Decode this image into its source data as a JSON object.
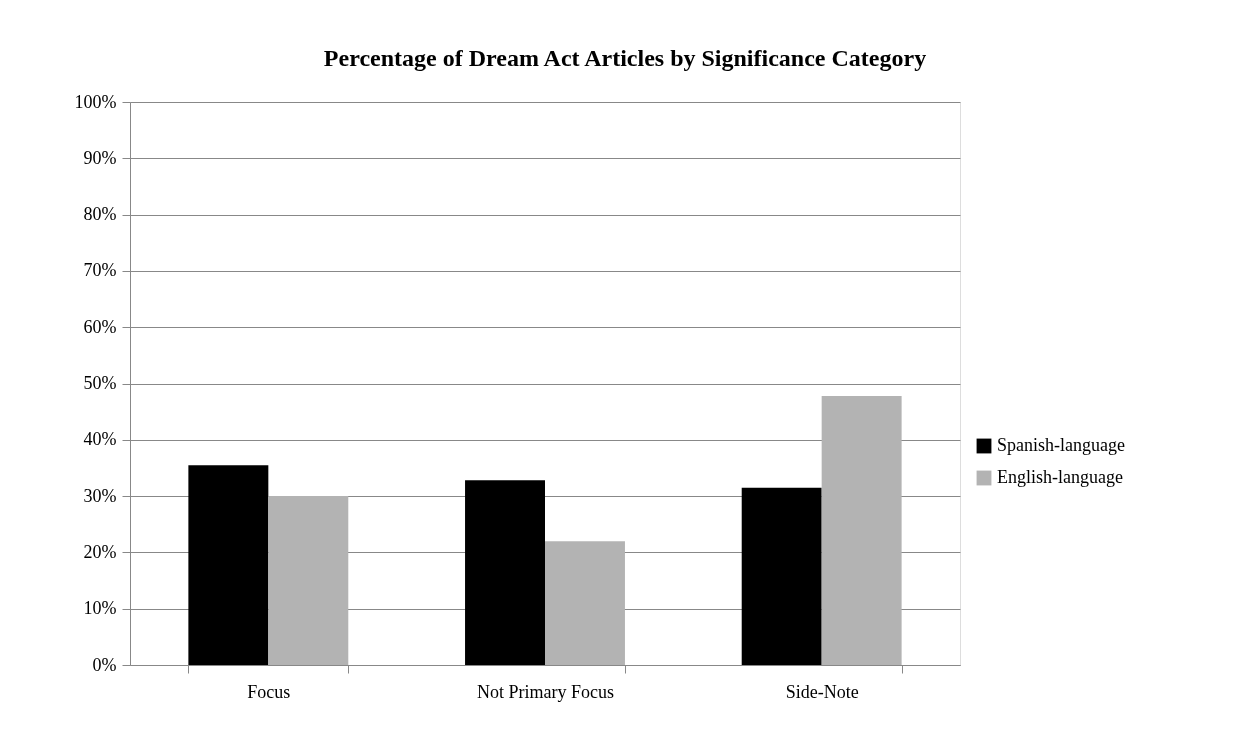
{
  "chart_data": {
    "type": "bar",
    "title": "Percentage of Dream Act Articles by Significance Category",
    "categories": [
      "Focus",
      "Not Primary Focus",
      "Side-Note"
    ],
    "series": [
      {
        "name": "Spanish-language",
        "color": "#000000",
        "values": [
          35.5,
          32.8,
          31.5
        ]
      },
      {
        "name": "English-language",
        "color": "#b3b3b3",
        "values": [
          30,
          22,
          47.8
        ]
      }
    ],
    "ylim": [
      0,
      100
    ],
    "yticks": [
      {
        "value": 0,
        "label": "0%"
      },
      {
        "value": 10,
        "label": "10%"
      },
      {
        "value": 20,
        "label": "20%"
      },
      {
        "value": 30,
        "label": "30%"
      },
      {
        "value": 40,
        "label": "40%"
      },
      {
        "value": 50,
        "label": "50%"
      },
      {
        "value": 60,
        "label": "60%"
      },
      {
        "value": 70,
        "label": "70%"
      },
      {
        "value": 80,
        "label": "80%"
      },
      {
        "value": 90,
        "label": "90%"
      },
      {
        "value": 100,
        "label": "100%"
      }
    ],
    "grid": "y",
    "legend": "right"
  }
}
